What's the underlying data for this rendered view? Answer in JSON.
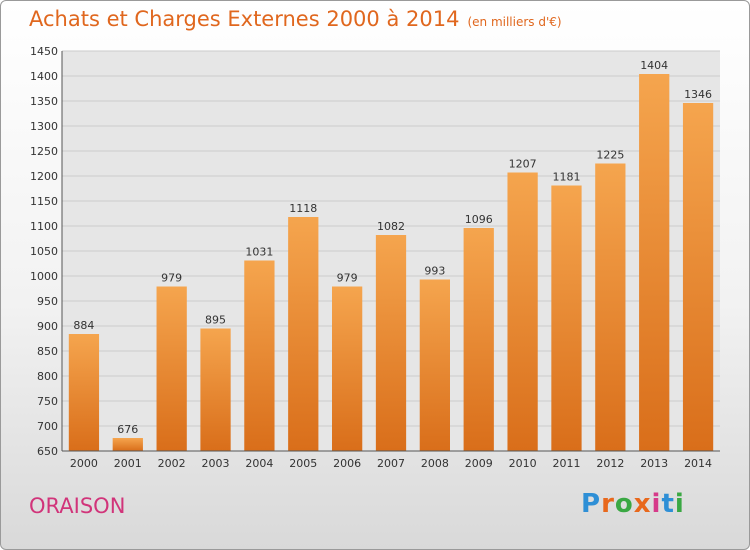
{
  "title": "Achats et Charges Externes 2000 à 2014",
  "subtitle": "(en milliers d'€)",
  "location": "ORAISON",
  "logo": {
    "text": "Proxiti",
    "colors": [
      "#2e8fd6",
      "#e8681c",
      "#3aa843",
      "#e8681c",
      "#d63a8a",
      "#2e8fd6",
      "#3aa843"
    ]
  },
  "colors": {
    "title": "#e0671e",
    "location": "#d1347a",
    "bar_light": "#f5a54e",
    "bar_dark": "#d96e1a",
    "grid": "#cccccc",
    "plot_bg": "#e6e6e6"
  },
  "chart_data": {
    "type": "bar",
    "categories": [
      "2000",
      "2001",
      "2002",
      "2003",
      "2004",
      "2005",
      "2006",
      "2007",
      "2008",
      "2009",
      "2010",
      "2011",
      "2012",
      "2013",
      "2014"
    ],
    "values": [
      884,
      676,
      979,
      895,
      1031,
      1118,
      979,
      1082,
      993,
      1096,
      1207,
      1181,
      1225,
      1404,
      1346
    ],
    "ylim": [
      650,
      1450
    ],
    "yticks": [
      650,
      700,
      750,
      800,
      850,
      900,
      950,
      1000,
      1050,
      1100,
      1150,
      1200,
      1250,
      1300,
      1350,
      1400,
      1450
    ],
    "grid": true,
    "data_labels": true
  }
}
